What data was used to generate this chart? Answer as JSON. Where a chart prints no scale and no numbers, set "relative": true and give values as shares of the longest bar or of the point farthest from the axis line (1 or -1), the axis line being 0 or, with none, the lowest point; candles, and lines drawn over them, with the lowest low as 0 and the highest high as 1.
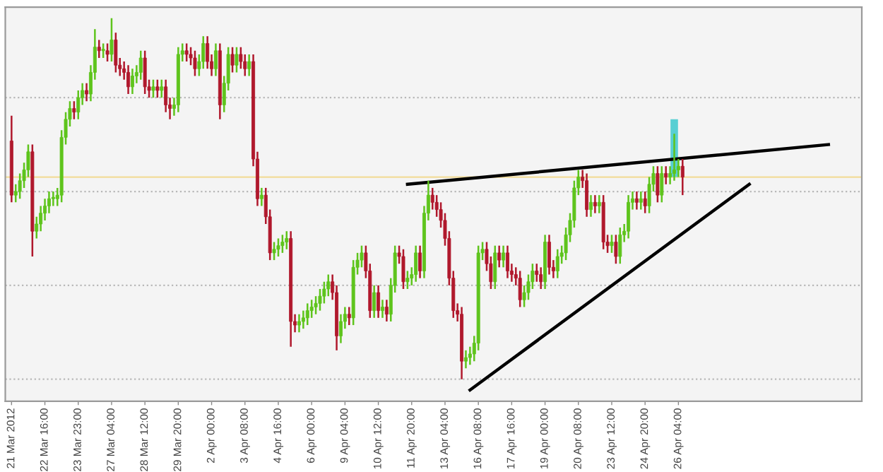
{
  "chart_data": {
    "type": "candlestick",
    "relative": true,
    "grid": false,
    "categories": [
      "21 Mar 2012",
      null,
      null,
      null,
      null,
      null,
      null,
      null,
      "22 Mar 16:00",
      null,
      null,
      null,
      null,
      null,
      null,
      null,
      "23 Mar 23:00",
      null,
      null,
      null,
      null,
      null,
      null,
      null,
      "27 Mar 04:00",
      null,
      null,
      null,
      null,
      null,
      null,
      null,
      "28 Mar 12:00",
      null,
      null,
      null,
      null,
      null,
      null,
      null,
      "29 Mar 20:00",
      null,
      null,
      null,
      null,
      null,
      null,
      null,
      "2 Apr 00:00",
      null,
      null,
      null,
      null,
      null,
      null,
      null,
      "3 Apr 08:00",
      null,
      null,
      null,
      null,
      null,
      null,
      null,
      "4 Apr 16:00",
      null,
      null,
      null,
      null,
      null,
      null,
      null,
      "6 Apr 00:00",
      null,
      null,
      null,
      null,
      null,
      null,
      null,
      "9 Apr 04:00",
      null,
      null,
      null,
      null,
      null,
      null,
      null,
      "10 Apr 12:00",
      null,
      null,
      null,
      null,
      null,
      null,
      null,
      "11 Apr 20:00",
      null,
      null,
      null,
      null,
      null,
      null,
      null,
      "13 Apr 04:00",
      null,
      null,
      null,
      null,
      null,
      null,
      null,
      "16 Apr 08:00",
      null,
      null,
      null,
      null,
      null,
      null,
      null,
      "17 Apr 16:00",
      null,
      null,
      null,
      null,
      null,
      null,
      null,
      "19 Apr 00:00",
      null,
      null,
      null,
      null,
      null,
      null,
      null,
      "20 Apr 08:00",
      null,
      null,
      null,
      null,
      null,
      null,
      null,
      "23 Apr 12:00",
      null,
      null,
      null,
      null,
      null,
      null,
      null,
      "24 Apr 20:00",
      null,
      null,
      null,
      null,
      null,
      null,
      null,
      "26 Apr 04:00",
      null,
      null,
      null,
      null,
      null,
      null,
      null,
      null,
      null,
      null,
      null,
      null,
      null,
      null,
      null,
      null,
      null,
      null,
      null,
      null,
      null,
      null,
      null,
      null,
      null,
      null,
      null,
      null,
      null,
      null,
      null,
      null,
      null,
      null,
      null,
      null
    ],
    "ohlc": [
      [
        0.66,
        0.73,
        0.49,
        0.51
      ],
      [
        0.51,
        0.54,
        0.49,
        0.52
      ],
      [
        0.52,
        0.57,
        0.5,
        0.55
      ],
      [
        0.55,
        0.6,
        0.53,
        0.58
      ],
      [
        0.58,
        0.65,
        0.56,
        0.63
      ],
      [
        0.63,
        0.65,
        0.34,
        0.41
      ],
      [
        0.41,
        0.45,
        0.39,
        0.43
      ],
      [
        0.43,
        0.48,
        0.41,
        0.46
      ],
      [
        0.46,
        0.5,
        0.44,
        0.48
      ],
      [
        0.48,
        0.52,
        0.46,
        0.5
      ],
      [
        0.5,
        0.52,
        0.48,
        0.5
      ],
      [
        0.5,
        0.53,
        0.48,
        0.51
      ],
      [
        0.51,
        0.69,
        0.49,
        0.67
      ],
      [
        0.67,
        0.74,
        0.65,
        0.72
      ],
      [
        0.72,
        0.77,
        0.7,
        0.75
      ],
      [
        0.75,
        0.77,
        0.72,
        0.74
      ],
      [
        0.74,
        0.8,
        0.72,
        0.78
      ],
      [
        0.78,
        0.82,
        0.76,
        0.8
      ],
      [
        0.8,
        0.82,
        0.77,
        0.79
      ],
      [
        0.79,
        0.87,
        0.77,
        0.85
      ],
      [
        0.85,
        0.97,
        0.83,
        0.92
      ],
      [
        0.92,
        0.94,
        0.89,
        0.91
      ],
      [
        0.91,
        0.93,
        0.89,
        0.91
      ],
      [
        0.91,
        0.93,
        0.88,
        0.9
      ],
      [
        0.9,
        1.0,
        0.88,
        0.94
      ],
      [
        0.94,
        0.96,
        0.85,
        0.87
      ],
      [
        0.87,
        0.89,
        0.84,
        0.86
      ],
      [
        0.86,
        0.88,
        0.83,
        0.85
      ],
      [
        0.85,
        0.87,
        0.79,
        0.81
      ],
      [
        0.81,
        0.86,
        0.79,
        0.84
      ],
      [
        0.84,
        0.87,
        0.82,
        0.85
      ],
      [
        0.85,
        0.91,
        0.83,
        0.89
      ],
      [
        0.89,
        0.91,
        0.79,
        0.81
      ],
      [
        0.81,
        0.83,
        0.78,
        0.8
      ],
      [
        0.8,
        0.83,
        0.78,
        0.81
      ],
      [
        0.81,
        0.83,
        0.78,
        0.8
      ],
      [
        0.8,
        0.83,
        0.78,
        0.81
      ],
      [
        0.81,
        0.83,
        0.74,
        0.76
      ],
      [
        0.76,
        0.78,
        0.72,
        0.75
      ],
      [
        0.75,
        0.78,
        0.73,
        0.76
      ],
      [
        0.76,
        0.92,
        0.74,
        0.9
      ],
      [
        0.9,
        0.93,
        0.88,
        0.91
      ],
      [
        0.91,
        0.93,
        0.88,
        0.9
      ],
      [
        0.9,
        0.92,
        0.87,
        0.89
      ],
      [
        0.89,
        0.91,
        0.84,
        0.86
      ],
      [
        0.86,
        0.9,
        0.84,
        0.88
      ],
      [
        0.88,
        0.95,
        0.86,
        0.93
      ],
      [
        0.93,
        0.95,
        0.86,
        0.88
      ],
      [
        0.88,
        0.9,
        0.84,
        0.86
      ],
      [
        0.86,
        0.93,
        0.84,
        0.91
      ],
      [
        0.91,
        0.93,
        0.72,
        0.76
      ],
      [
        0.76,
        0.84,
        0.74,
        0.82
      ],
      [
        0.82,
        0.92,
        0.8,
        0.9
      ],
      [
        0.9,
        0.92,
        0.85,
        0.87
      ],
      [
        0.87,
        0.92,
        0.85,
        0.9
      ],
      [
        0.9,
        0.92,
        0.86,
        0.88
      ],
      [
        0.88,
        0.9,
        0.84,
        0.86
      ],
      [
        0.86,
        0.9,
        0.84,
        0.88
      ],
      [
        0.88,
        0.9,
        0.59,
        0.61
      ],
      [
        0.61,
        0.63,
        0.48,
        0.5
      ],
      [
        0.5,
        0.53,
        0.48,
        0.51
      ],
      [
        0.51,
        0.53,
        0.43,
        0.45
      ],
      [
        0.45,
        0.47,
        0.33,
        0.35
      ],
      [
        0.35,
        0.38,
        0.33,
        0.36
      ],
      [
        0.36,
        0.39,
        0.34,
        0.37
      ],
      [
        0.37,
        0.4,
        0.35,
        0.38
      ],
      [
        0.38,
        0.41,
        0.36,
        0.39
      ],
      [
        0.39,
        0.41,
        0.09,
        0.16
      ],
      [
        0.16,
        0.18,
        0.13,
        0.15
      ],
      [
        0.15,
        0.18,
        0.13,
        0.16
      ],
      [
        0.16,
        0.19,
        0.14,
        0.17
      ],
      [
        0.17,
        0.21,
        0.15,
        0.19
      ],
      [
        0.19,
        0.22,
        0.17,
        0.2
      ],
      [
        0.2,
        0.23,
        0.18,
        0.21
      ],
      [
        0.21,
        0.25,
        0.19,
        0.23
      ],
      [
        0.23,
        0.27,
        0.21,
        0.25
      ],
      [
        0.25,
        0.29,
        0.23,
        0.27
      ],
      [
        0.27,
        0.29,
        0.22,
        0.24
      ],
      [
        0.24,
        0.26,
        0.08,
        0.12
      ],
      [
        0.12,
        0.18,
        0.1,
        0.16
      ],
      [
        0.16,
        0.2,
        0.14,
        0.18
      ],
      [
        0.18,
        0.2,
        0.15,
        0.17
      ],
      [
        0.17,
        0.33,
        0.15,
        0.31
      ],
      [
        0.31,
        0.35,
        0.29,
        0.33
      ],
      [
        0.33,
        0.37,
        0.31,
        0.35
      ],
      [
        0.35,
        0.37,
        0.28,
        0.3
      ],
      [
        0.3,
        0.32,
        0.17,
        0.19
      ],
      [
        0.19,
        0.26,
        0.17,
        0.24
      ],
      [
        0.24,
        0.26,
        0.17,
        0.19
      ],
      [
        0.19,
        0.22,
        0.17,
        0.2
      ],
      [
        0.2,
        0.22,
        0.16,
        0.18
      ],
      [
        0.18,
        0.28,
        0.16,
        0.26
      ],
      [
        0.26,
        0.37,
        0.24,
        0.35
      ],
      [
        0.35,
        0.37,
        0.32,
        0.34
      ],
      [
        0.34,
        0.36,
        0.25,
        0.27
      ],
      [
        0.27,
        0.3,
        0.25,
        0.28
      ],
      [
        0.28,
        0.31,
        0.26,
        0.29
      ],
      [
        0.29,
        0.37,
        0.27,
        0.35
      ],
      [
        0.35,
        0.37,
        0.28,
        0.3
      ],
      [
        0.3,
        0.48,
        0.28,
        0.46
      ],
      [
        0.46,
        0.55,
        0.44,
        0.51
      ],
      [
        0.51,
        0.53,
        0.47,
        0.49
      ],
      [
        0.49,
        0.51,
        0.45,
        0.47
      ],
      [
        0.47,
        0.49,
        0.42,
        0.44
      ],
      [
        0.44,
        0.46,
        0.37,
        0.39
      ],
      [
        0.39,
        0.41,
        0.26,
        0.28
      ],
      [
        0.28,
        0.3,
        0.17,
        0.19
      ],
      [
        0.19,
        0.21,
        0.16,
        0.18
      ],
      [
        0.18,
        0.2,
        0.0,
        0.05
      ],
      [
        0.05,
        0.08,
        0.03,
        0.06
      ],
      [
        0.06,
        0.09,
        0.04,
        0.07
      ],
      [
        0.07,
        0.12,
        0.05,
        0.1
      ],
      [
        0.1,
        0.37,
        0.08,
        0.35
      ],
      [
        0.35,
        0.38,
        0.33,
        0.36
      ],
      [
        0.36,
        0.38,
        0.3,
        0.32
      ],
      [
        0.32,
        0.34,
        0.25,
        0.27
      ],
      [
        0.27,
        0.37,
        0.25,
        0.35
      ],
      [
        0.35,
        0.37,
        0.31,
        0.33
      ],
      [
        0.33,
        0.37,
        0.31,
        0.35
      ],
      [
        0.35,
        0.37,
        0.28,
        0.3
      ],
      [
        0.3,
        0.32,
        0.27,
        0.29
      ],
      [
        0.29,
        0.31,
        0.26,
        0.28
      ],
      [
        0.28,
        0.3,
        0.2,
        0.22
      ],
      [
        0.22,
        0.26,
        0.2,
        0.24
      ],
      [
        0.24,
        0.29,
        0.22,
        0.27
      ],
      [
        0.27,
        0.32,
        0.25,
        0.3
      ],
      [
        0.3,
        0.32,
        0.27,
        0.29
      ],
      [
        0.29,
        0.31,
        0.25,
        0.27
      ],
      [
        0.27,
        0.4,
        0.25,
        0.38
      ],
      [
        0.38,
        0.4,
        0.29,
        0.31
      ],
      [
        0.31,
        0.33,
        0.28,
        0.3
      ],
      [
        0.3,
        0.36,
        0.28,
        0.34
      ],
      [
        0.34,
        0.37,
        0.32,
        0.35
      ],
      [
        0.35,
        0.42,
        0.33,
        0.4
      ],
      [
        0.4,
        0.46,
        0.38,
        0.44
      ],
      [
        0.44,
        0.55,
        0.42,
        0.53
      ],
      [
        0.53,
        0.58,
        0.51,
        0.56
      ],
      [
        0.56,
        0.58,
        0.53,
        0.55
      ],
      [
        0.55,
        0.57,
        0.45,
        0.47
      ],
      [
        0.47,
        0.51,
        0.45,
        0.49
      ],
      [
        0.49,
        0.51,
        0.46,
        0.48
      ],
      [
        0.48,
        0.51,
        0.46,
        0.49
      ],
      [
        0.49,
        0.51,
        0.36,
        0.38
      ],
      [
        0.38,
        0.4,
        0.35,
        0.37
      ],
      [
        0.37,
        0.4,
        0.35,
        0.38
      ],
      [
        0.38,
        0.4,
        0.32,
        0.34
      ],
      [
        0.34,
        0.42,
        0.32,
        0.4
      ],
      [
        0.4,
        0.43,
        0.38,
        0.41
      ],
      [
        0.41,
        0.51,
        0.39,
        0.49
      ],
      [
        0.49,
        0.52,
        0.47,
        0.5
      ],
      [
        0.5,
        0.52,
        0.47,
        0.49
      ],
      [
        0.49,
        0.52,
        0.47,
        0.5
      ],
      [
        0.5,
        0.52,
        0.46,
        0.48
      ],
      [
        0.48,
        0.56,
        0.46,
        0.54
      ],
      [
        0.54,
        0.59,
        0.52,
        0.57
      ],
      [
        0.57,
        0.59,
        0.49,
        0.51
      ],
      [
        0.51,
        0.59,
        0.49,
        0.57
      ],
      [
        0.57,
        0.59,
        0.54,
        0.56
      ],
      [
        0.56,
        0.59,
        0.54,
        0.57
      ],
      [
        0.57,
        0.68,
        0.55,
        0.58
      ],
      [
        0.58,
        0.61,
        0.56,
        0.59
      ],
      [
        0.59,
        0.61,
        0.51,
        0.56
      ],
      null,
      null,
      null,
      null,
      null,
      null,
      null,
      null,
      null,
      null,
      null,
      null,
      null,
      null,
      null,
      null,
      null,
      null,
      null,
      null,
      null,
      null,
      null,
      null,
      null,
      null,
      null,
      null,
      null,
      null,
      null,
      null,
      null,
      null,
      null
    ],
    "colors": [
      "#b0182c",
      "#5ec41c",
      "#5ec41c",
      "#5ec41c",
      "#5ec41c",
      "#b0182c",
      "#5ec41c",
      "#5ec41c",
      "#5ec41c",
      "#5ec41c",
      "#5ec41c",
      "#5ec41c",
      "#5ec41c",
      "#5ec41c",
      "#5ec41c",
      "#b0182c",
      "#5ec41c",
      "#5ec41c",
      "#b0182c",
      "#5ec41c",
      "#5ec41c",
      "#b0182c",
      "#5ec41c",
      "#b0182c",
      "#5ec41c",
      "#b0182c",
      "#b0182c",
      "#b0182c",
      "#b0182c",
      "#5ec41c",
      "#5ec41c",
      "#5ec41c",
      "#b0182c",
      "#b0182c",
      "#5ec41c",
      "#b0182c",
      "#5ec41c",
      "#b0182c",
      "#b0182c",
      "#5ec41c",
      "#5ec41c",
      "#5ec41c",
      "#b0182c",
      "#b0182c",
      "#b0182c",
      "#5ec41c",
      "#5ec41c",
      "#b0182c",
      "#b0182c",
      "#5ec41c",
      "#b0182c",
      "#5ec41c",
      "#5ec41c",
      "#b0182c",
      "#5ec41c",
      "#b0182c",
      "#b0182c",
      "#5ec41c",
      "#b0182c",
      "#b0182c",
      "#5ec41c",
      "#b0182c",
      "#b0182c",
      "#5ec41c",
      "#5ec41c",
      "#5ec41c",
      "#5ec41c",
      "#b0182c",
      "#b0182c",
      "#5ec41c",
      "#5ec41c",
      "#5ec41c",
      "#5ec41c",
      "#5ec41c",
      "#5ec41c",
      "#5ec41c",
      "#5ec41c",
      "#b0182c",
      "#b0182c",
      "#5ec41c",
      "#5ec41c",
      "#b0182c",
      "#5ec41c",
      "#5ec41c",
      "#5ec41c",
      "#b0182c",
      "#b0182c",
      "#5ec41c",
      "#b0182c",
      "#5ec41c",
      "#b0182c",
      "#5ec41c",
      "#5ec41c",
      "#b0182c",
      "#b0182c",
      "#5ec41c",
      "#5ec41c",
      "#5ec41c",
      "#b0182c",
      "#5ec41c",
      "#5ec41c",
      "#b0182c",
      "#b0182c",
      "#b0182c",
      "#b0182c",
      "#b0182c",
      "#b0182c",
      "#b0182c",
      "#b0182c",
      "#5ec41c",
      "#5ec41c",
      "#5ec41c",
      "#5ec41c",
      "#5ec41c",
      "#b0182c",
      "#b0182c",
      "#5ec41c",
      "#b0182c",
      "#5ec41c",
      "#b0182c",
      "#b0182c",
      "#b0182c",
      "#b0182c",
      "#5ec41c",
      "#5ec41c",
      "#5ec41c",
      "#b0182c",
      "#b0182c",
      "#5ec41c",
      "#b0182c",
      "#b0182c",
      "#5ec41c",
      "#5ec41c",
      "#5ec41c",
      "#5ec41c",
      "#5ec41c",
      "#5ec41c",
      "#b0182c",
      "#b0182c",
      "#5ec41c",
      "#b0182c",
      "#5ec41c",
      "#b0182c",
      "#b0182c",
      "#5ec41c",
      "#b0182c",
      "#5ec41c",
      "#5ec41c",
      "#5ec41c",
      "#5ec41c",
      "#b0182c",
      "#5ec41c",
      "#b0182c",
      "#5ec41c",
      "#5ec41c",
      "#b0182c",
      "#5ec41c",
      "#b0182c",
      "#5ec41c",
      "#5ec41c",
      "#5ec41c",
      "#b0182c",
      null,
      null,
      null,
      null,
      null,
      null,
      null,
      null,
      null,
      null,
      null,
      null,
      null,
      null,
      null,
      null,
      null,
      null,
      null,
      null,
      null,
      null,
      null,
      null,
      null,
      null,
      null,
      null,
      null,
      null,
      null,
      null,
      null,
      null,
      null
    ],
    "series": [
      {
        "type": "line",
        "color": "#000000",
        "values": [
          null,
          null,
          null,
          null,
          null,
          null,
          null,
          null,
          null,
          null,
          null,
          null,
          null,
          null,
          null,
          null,
          null,
          null,
          null,
          null,
          null,
          null,
          null,
          null,
          null,
          null,
          null,
          null,
          null,
          null,
          null,
          null,
          null,
          null,
          null,
          null,
          null,
          null,
          null,
          null,
          null,
          null,
          null,
          null,
          null,
          null,
          null,
          null,
          null,
          null,
          null,
          null,
          null,
          null,
          null,
          null,
          null,
          null,
          null,
          null,
          null,
          null,
          null,
          null,
          null,
          null,
          null,
          null,
          null,
          null,
          null,
          null,
          null,
          null,
          null,
          null,
          null,
          null,
          null,
          null,
          null,
          null,
          null,
          null,
          null,
          null,
          null,
          null,
          null,
          null,
          null,
          null,
          null,
          null,
          null,
          0.54,
          null,
          null,
          null,
          null,
          null,
          null,
          null,
          null,
          null,
          null,
          null,
          null,
          null,
          null,
          null,
          null,
          null,
          null,
          null,
          null,
          null,
          null,
          null,
          null,
          null,
          null,
          null,
          null,
          null,
          null,
          null,
          null,
          null,
          null,
          null,
          null,
          null,
          null,
          null,
          null,
          null,
          null,
          null,
          null,
          null,
          null,
          null,
          null,
          null,
          null,
          null,
          null,
          null,
          null,
          null,
          null,
          null,
          null,
          null,
          null,
          null,
          null,
          null,
          null,
          null,
          null,
          null,
          null,
          null,
          null,
          null,
          null,
          null,
          null,
          null,
          null,
          null,
          null,
          null,
          null,
          null,
          null,
          null,
          null,
          null,
          null,
          null,
          null,
          null,
          null,
          null,
          null,
          null,
          null,
          null,
          null,
          null,
          null,
          null,
          null,
          0.65
        ]
      },
      {
        "type": "line",
        "color": "#000000",
        "values": [
          null,
          null,
          null,
          null,
          null,
          null,
          null,
          null,
          null,
          null,
          null,
          null,
          null,
          null,
          null,
          null,
          null,
          null,
          null,
          null,
          null,
          null,
          null,
          null,
          null,
          null,
          null,
          null,
          null,
          null,
          null,
          null,
          null,
          null,
          null,
          null,
          null,
          null,
          null,
          null,
          null,
          null,
          null,
          null,
          null,
          null,
          null,
          null,
          null,
          null,
          null,
          null,
          null,
          null,
          null,
          null,
          null,
          null,
          null,
          null,
          null,
          null,
          null,
          null,
          null,
          null,
          null,
          null,
          null,
          null,
          null,
          null,
          null,
          null,
          null,
          null,
          null,
          null,
          null,
          null,
          null,
          null,
          null,
          null,
          null,
          null,
          null,
          null,
          null,
          null,
          null,
          null,
          null,
          null,
          null,
          null,
          null,
          null,
          null,
          null,
          null,
          null,
          null,
          null,
          null,
          null,
          null,
          null,
          null,
          null,
          -0.03,
          null,
          null,
          null,
          null,
          null,
          null,
          null,
          null,
          null,
          null,
          null,
          null,
          null,
          null,
          null,
          null,
          null,
          null,
          null,
          null,
          null,
          null,
          null,
          null,
          null,
          null,
          null,
          null,
          null,
          null,
          null,
          null,
          null,
          null,
          null,
          null,
          null,
          null,
          null,
          null,
          null,
          null,
          null,
          null,
          null,
          null,
          null,
          null,
          null,
          null,
          null,
          null,
          null,
          null,
          null,
          null,
          null,
          null,
          null,
          null,
          null,
          null,
          null,
          null,
          null,
          null,
          0.54,
          null,
          null,
          null,
          null,
          null,
          null,
          null,
          null,
          null,
          null,
          null,
          null,
          null,
          null,
          null,
          null,
          null,
          null,
          null
        ]
      },
      {
        "type": "bar",
        "color": "#3cc8cc",
        "base": [
          null,
          null,
          null,
          null,
          null,
          null,
          null,
          null,
          null,
          null,
          null,
          null,
          null,
          null,
          null,
          null,
          null,
          null,
          null,
          null,
          null,
          null,
          null,
          null,
          null,
          null,
          null,
          null,
          null,
          null,
          null,
          null,
          null,
          null,
          null,
          null,
          null,
          null,
          null,
          null,
          null,
          null,
          null,
          null,
          null,
          null,
          null,
          null,
          null,
          null,
          null,
          null,
          null,
          null,
          null,
          null,
          null,
          null,
          null,
          null,
          null,
          null,
          null,
          null,
          null,
          null,
          null,
          null,
          null,
          null,
          null,
          null,
          null,
          null,
          null,
          null,
          null,
          null,
          null,
          null,
          null,
          null,
          null,
          null,
          null,
          null,
          null,
          null,
          null,
          null,
          null,
          null,
          null,
          null,
          null,
          null,
          null,
          null,
          null,
          null,
          null,
          null,
          null,
          null,
          null,
          null,
          null,
          null,
          null,
          null,
          null,
          null,
          null,
          null,
          null,
          null,
          null,
          null,
          null,
          null,
          null,
          null,
          null,
          null,
          null,
          null,
          null,
          null,
          null,
          null,
          null,
          null,
          null,
          null,
          null,
          null,
          null,
          null,
          null,
          null,
          null,
          null,
          null,
          null,
          null,
          null,
          null,
          null,
          null,
          null,
          null,
          null,
          null,
          null,
          null,
          null,
          null,
          null,
          null,
          0.56,
          null,
          null,
          null,
          null,
          null,
          null,
          null,
          null,
          null,
          null,
          null,
          null,
          null,
          null,
          null,
          null,
          null,
          null,
          null,
          null,
          null,
          null,
          null,
          null,
          null,
          null,
          null,
          null,
          null,
          null,
          null,
          null,
          null,
          null,
          null,
          null,
          null
        ],
        "values": [
          null,
          null,
          null,
          null,
          null,
          null,
          null,
          null,
          null,
          null,
          null,
          null,
          null,
          null,
          null,
          null,
          null,
          null,
          null,
          null,
          null,
          null,
          null,
          null,
          null,
          null,
          null,
          null,
          null,
          null,
          null,
          null,
          null,
          null,
          null,
          null,
          null,
          null,
          null,
          null,
          null,
          null,
          null,
          null,
          null,
          null,
          null,
          null,
          null,
          null,
          null,
          null,
          null,
          null,
          null,
          null,
          null,
          null,
          null,
          null,
          null,
          null,
          null,
          null,
          null,
          null,
          null,
          null,
          null,
          null,
          null,
          null,
          null,
          null,
          null,
          null,
          null,
          null,
          null,
          null,
          null,
          null,
          null,
          null,
          null,
          null,
          null,
          null,
          null,
          null,
          null,
          null,
          null,
          null,
          null,
          null,
          null,
          null,
          null,
          null,
          null,
          null,
          null,
          null,
          null,
          null,
          null,
          null,
          null,
          null,
          null,
          null,
          null,
          null,
          null,
          null,
          null,
          null,
          null,
          null,
          null,
          null,
          null,
          null,
          null,
          null,
          null,
          null,
          null,
          null,
          null,
          null,
          null,
          null,
          null,
          null,
          null,
          null,
          null,
          null,
          null,
          null,
          null,
          null,
          null,
          null,
          null,
          null,
          null,
          null,
          null,
          null,
          null,
          null,
          null,
          null,
          null,
          null,
          null,
          0.16,
          null,
          null,
          null,
          null,
          null,
          null,
          null,
          null,
          null,
          null,
          null,
          null,
          null,
          null,
          null,
          null,
          null,
          null,
          null,
          null,
          null,
          null,
          null,
          null,
          null,
          null,
          null,
          null,
          null,
          null,
          null,
          null,
          null,
          null,
          null,
          null,
          null
        ]
      }
    ],
    "ref_lines": [
      {
        "axis": "y",
        "value": 0.56,
        "color": "#f2dc9a",
        "line_style": "solid"
      },
      {
        "axis": "y",
        "value": 0.78,
        "color": "#b8b8b8",
        "line_style": "dotted"
      },
      {
        "axis": "y",
        "value": 0.52,
        "color": "#b8b8b8",
        "line_style": "dotted"
      },
      {
        "axis": "y",
        "value": 0.26,
        "color": "#b8b8b8",
        "line_style": "dotted"
      },
      {
        "axis": "y",
        "value": 0.0,
        "color": "#b8b8b8",
        "line_style": "dotted"
      }
    ]
  }
}
